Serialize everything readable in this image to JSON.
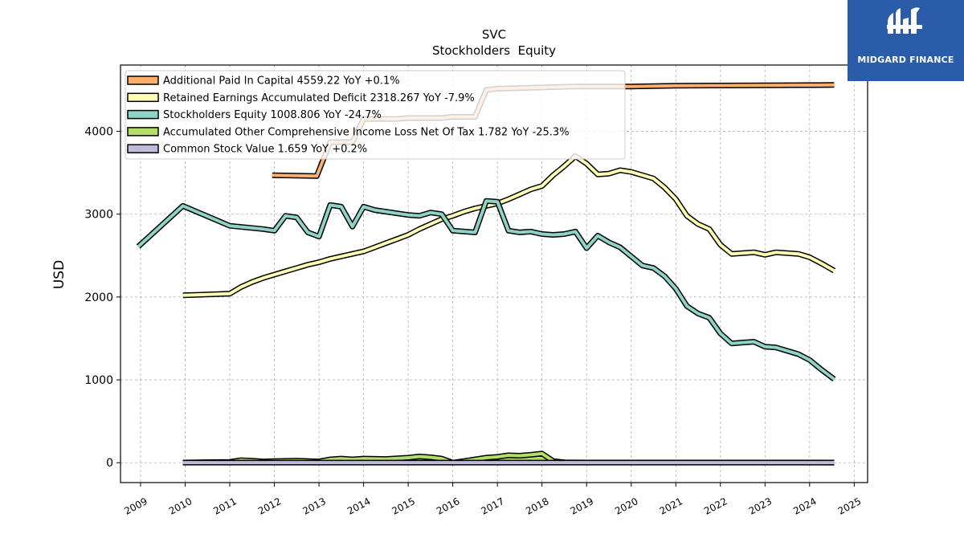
{
  "brand": {
    "name": "MIDGARD FINANCE",
    "icon": "midgard-logo-icon",
    "background_color": "#2a5caa"
  },
  "chart_data": {
    "type": "line",
    "title": "SVC",
    "subtitle": "Stockholders  Equity",
    "ylabel": "USD",
    "xlabel": "",
    "xlim": [
      2008.55,
      2025.3
    ],
    "ylim": [
      -240,
      4800
    ],
    "x_ticks": [
      2009,
      2010,
      2011,
      2012,
      2013,
      2014,
      2015,
      2016,
      2017,
      2018,
      2019,
      2020,
      2021,
      2022,
      2023,
      2024,
      2025
    ],
    "y_ticks": [
      0,
      1000,
      2000,
      3000,
      4000
    ],
    "grid": true,
    "legend_position": "top-left",
    "series": [
      {
        "name": "Additional Paid In Capital",
        "legend": "Additional Paid In Capital  4559.22 YoY +0.1%",
        "color": "#fdae6b",
        "x": [
          2011.95,
          2012.95,
          2013.25,
          2013.75,
          2014.0,
          2014.75,
          2015.0,
          2015.75,
          2016.0,
          2016.5,
          2016.75,
          2017.0,
          2018.0,
          2018.75,
          2019.0,
          2020.0,
          2021.0,
          2022.0,
          2023.0,
          2024.0,
          2024.55
        ],
        "y": [
          3470,
          3460,
          3870,
          3870,
          4150,
          4150,
          4160,
          4160,
          4175,
          4175,
          4500,
          4515,
          4530,
          4540,
          4540,
          4540,
          4550,
          4553,
          4555,
          4558,
          4559.22
        ]
      },
      {
        "name": "Retained Earnings Accumulated Deficit",
        "legend": "Retained Earnings Accumulated Deficit  2318.267 YoY -7.9%",
        "color": "#ffffb3",
        "x": [
          2009.95,
          2011.0,
          2011.25,
          2011.5,
          2011.75,
          2012.0,
          2012.25,
          2012.5,
          2012.75,
          2013.0,
          2013.25,
          2013.5,
          2013.75,
          2014.0,
          2014.25,
          2014.5,
          2014.75,
          2015.0,
          2015.25,
          2015.5,
          2015.75,
          2016.0,
          2016.25,
          2016.5,
          2016.75,
          2017.0,
          2017.25,
          2017.5,
          2017.75,
          2018.0,
          2018.25,
          2018.5,
          2018.75,
          2019.0,
          2019.25,
          2019.5,
          2019.75,
          2020.0,
          2020.25,
          2020.5,
          2020.75,
          2021.0,
          2021.25,
          2021.5,
          2021.75,
          2022.0,
          2022.25,
          2022.5,
          2022.75,
          2023.0,
          2023.25,
          2023.5,
          2023.75,
          2024.0,
          2024.25,
          2024.55
        ],
        "y": [
          2020,
          2040,
          2120,
          2180,
          2230,
          2270,
          2310,
          2350,
          2390,
          2420,
          2460,
          2490,
          2520,
          2550,
          2600,
          2650,
          2700,
          2750,
          2820,
          2880,
          2940,
          2980,
          3030,
          3070,
          3100,
          3130,
          3180,
          3240,
          3300,
          3340,
          3470,
          3580,
          3700,
          3610,
          3480,
          3490,
          3530,
          3510,
          3470,
          3430,
          3320,
          3180,
          2980,
          2880,
          2820,
          2630,
          2520,
          2530,
          2540,
          2510,
          2540,
          2530,
          2520,
          2480,
          2410,
          2318.267
        ]
      },
      {
        "name": "Stockholders Equity",
        "legend": "Stockholders Equity  1008.806 YoY -24.7%",
        "color": "#8dd3c7",
        "x": [
          2008.95,
          2009.95,
          2011.0,
          2011.75,
          2012.0,
          2012.25,
          2012.5,
          2012.75,
          2013.0,
          2013.25,
          2013.5,
          2013.75,
          2014.0,
          2014.25,
          2014.5,
          2014.75,
          2015.0,
          2015.25,
          2015.5,
          2015.75,
          2016.0,
          2016.5,
          2016.75,
          2017.0,
          2017.25,
          2017.5,
          2017.75,
          2018.0,
          2018.25,
          2018.5,
          2018.75,
          2019.0,
          2019.25,
          2019.5,
          2019.75,
          2020.0,
          2020.25,
          2020.5,
          2020.75,
          2021.0,
          2021.25,
          2021.5,
          2021.75,
          2022.0,
          2022.25,
          2022.5,
          2022.75,
          2023.0,
          2023.25,
          2023.5,
          2023.75,
          2024.0,
          2024.25,
          2024.55
        ],
        "y": [
          2610,
          3100,
          2860,
          2820,
          2800,
          2980,
          2960,
          2780,
          2730,
          3110,
          3090,
          2850,
          3090,
          3050,
          3030,
          3010,
          2990,
          2980,
          3020,
          3000,
          2800,
          2780,
          3160,
          3150,
          2800,
          2780,
          2790,
          2760,
          2750,
          2760,
          2790,
          2590,
          2740,
          2660,
          2600,
          2490,
          2380,
          2350,
          2250,
          2100,
          1890,
          1800,
          1750,
          1560,
          1440,
          1450,
          1460,
          1400,
          1390,
          1350,
          1310,
          1240,
          1130,
          1008.806
        ]
      },
      {
        "name": "Accumulated Other Comprehensive Income Loss Net Of Tax",
        "legend": "Accumulated Other Comprehensive Income Loss Net Of Tax  1.782 YoY -25.3%",
        "color": "#b3de69",
        "x": [
          2009.95,
          2011.0,
          2011.25,
          2011.5,
          2011.75,
          2012.0,
          2012.5,
          2013.0,
          2013.25,
          2013.5,
          2013.75,
          2014.0,
          2014.5,
          2015.0,
          2015.25,
          2015.5,
          2015.75,
          2016.0,
          2016.25,
          2016.5,
          2016.75,
          2017.0,
          2017.25,
          2017.5,
          2017.75,
          2018.0,
          2018.25,
          2018.5,
          2019.0,
          2020.0,
          2021.0,
          2022.0,
          2023.0,
          2024.0,
          2024.55
        ],
        "y": [
          2,
          10,
          30,
          25,
          15,
          20,
          25,
          15,
          40,
          50,
          40,
          50,
          45,
          60,
          75,
          65,
          50,
          0,
          20,
          40,
          60,
          70,
          90,
          85,
          95,
          110,
          20,
          5,
          2,
          2,
          2,
          2,
          2,
          2,
          1.782
        ]
      },
      {
        "name": "Common Stock Value",
        "legend": "Common Stock Value  1.659 YoY +0.2%",
        "color": "#bebada",
        "x": [
          2009.95,
          2011.0,
          2012.0,
          2013.0,
          2014.0,
          2015.0,
          2016.0,
          2017.0,
          2018.0,
          2019.0,
          2020.0,
          2021.0,
          2022.0,
          2023.0,
          2024.0,
          2024.55
        ],
        "y": [
          1.0,
          1.0,
          1.1,
          1.2,
          1.3,
          1.4,
          1.4,
          1.5,
          1.6,
          1.6,
          1.6,
          1.6,
          1.6,
          1.6,
          1.65,
          1.659
        ]
      }
    ]
  }
}
